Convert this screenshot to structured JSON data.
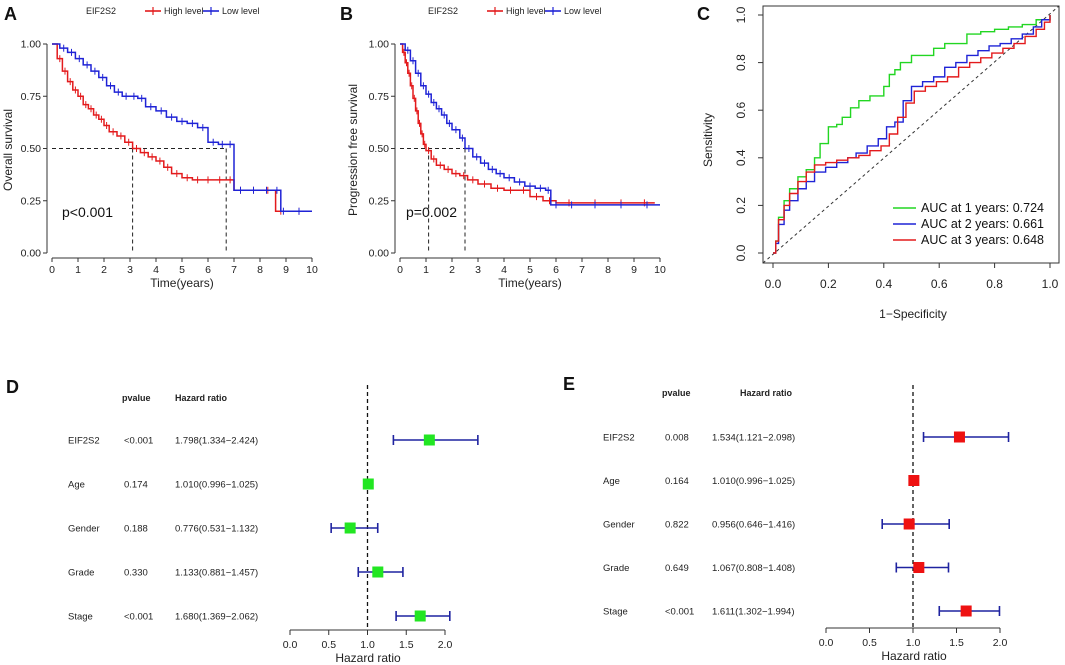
{
  "chart_data": [
    {
      "id": "A",
      "type": "line",
      "panel_label": "A",
      "legend_title": "EIF2S2",
      "xlabel": "Time(years)",
      "ylabel": "Overall survival",
      "xlim": [
        0,
        10
      ],
      "ylim": [
        0,
        1
      ],
      "xticks": [
        "0",
        "1",
        "2",
        "3",
        "4",
        "5",
        "6",
        "7",
        "8",
        "9",
        "10"
      ],
      "yticks": [
        "0.00",
        "0.25",
        "0.50",
        "0.75",
        "1.00"
      ],
      "pvalue_text": "p<0.001",
      "medians": [
        3.1,
        6.7
      ],
      "series": [
        {
          "name": "High level",
          "color": "#e31a1c",
          "x": [
            0,
            0.2,
            0.4,
            0.6,
            0.8,
            1.0,
            1.2,
            1.4,
            1.6,
            1.8,
            2.0,
            2.2,
            2.5,
            2.8,
            3.1,
            3.4,
            3.7,
            4.0,
            4.3,
            4.6,
            5.0,
            5.4,
            5.8,
            6.2,
            6.7,
            7.0,
            7.5,
            8.0,
            8.6,
            9.0,
            10.0
          ],
          "y": [
            1.0,
            0.93,
            0.87,
            0.82,
            0.78,
            0.75,
            0.71,
            0.69,
            0.66,
            0.64,
            0.61,
            0.58,
            0.56,
            0.53,
            0.5,
            0.48,
            0.46,
            0.44,
            0.41,
            0.38,
            0.36,
            0.35,
            0.35,
            0.35,
            0.35,
            0.3,
            0.3,
            0.3,
            0.2,
            0.2,
            0.2
          ]
        },
        {
          "name": "Low level",
          "color": "#1f23d6",
          "x": [
            0,
            0.3,
            0.6,
            0.9,
            1.2,
            1.5,
            1.8,
            2.1,
            2.4,
            2.7,
            3.0,
            3.3,
            3.6,
            4.0,
            4.4,
            4.8,
            5.2,
            5.6,
            6.0,
            6.4,
            6.7,
            7.0,
            7.5,
            8.0,
            8.5,
            8.8,
            9.0,
            10.0
          ],
          "y": [
            1.0,
            0.98,
            0.96,
            0.93,
            0.9,
            0.87,
            0.84,
            0.8,
            0.77,
            0.75,
            0.75,
            0.74,
            0.7,
            0.68,
            0.65,
            0.63,
            0.62,
            0.6,
            0.53,
            0.52,
            0.52,
            0.3,
            0.3,
            0.3,
            0.3,
            0.2,
            0.2,
            0.2
          ]
        }
      ]
    },
    {
      "id": "B",
      "type": "line",
      "panel_label": "B",
      "legend_title": "EIF2S2",
      "xlabel": "Time(years)",
      "ylabel": "Progression free survival",
      "xlim": [
        0,
        10
      ],
      "ylim": [
        0,
        1
      ],
      "xticks": [
        "0",
        "1",
        "2",
        "3",
        "4",
        "5",
        "6",
        "7",
        "8",
        "9",
        "10"
      ],
      "yticks": [
        "0.00",
        "0.25",
        "0.50",
        "0.75",
        "1.00"
      ],
      "pvalue_text": "p=0.002",
      "medians": [
        1.1,
        2.5
      ],
      "series": [
        {
          "name": "High level",
          "color": "#e31a1c",
          "x": [
            0,
            0.1,
            0.2,
            0.3,
            0.4,
            0.5,
            0.6,
            0.7,
            0.8,
            0.9,
            1.0,
            1.2,
            1.4,
            1.7,
            2.0,
            2.3,
            2.6,
            3.0,
            3.5,
            4.0,
            4.5,
            5.0,
            5.5,
            6.0,
            7.0,
            8.0,
            9.0,
            9.8
          ],
          "y": [
            1.0,
            0.96,
            0.91,
            0.86,
            0.8,
            0.74,
            0.68,
            0.62,
            0.57,
            0.52,
            0.49,
            0.45,
            0.42,
            0.4,
            0.38,
            0.37,
            0.35,
            0.33,
            0.31,
            0.3,
            0.3,
            0.27,
            0.25,
            0.24,
            0.24,
            0.24,
            0.24,
            0.24
          ]
        },
        {
          "name": "Low level",
          "color": "#1f23d6",
          "x": [
            0,
            0.2,
            0.4,
            0.6,
            0.8,
            1.0,
            1.2,
            1.4,
            1.6,
            1.8,
            2.0,
            2.3,
            2.5,
            2.8,
            3.1,
            3.4,
            3.7,
            4.0,
            4.4,
            4.8,
            5.2,
            5.6,
            5.8,
            6.2,
            7.0,
            8.0,
            9.0,
            10.0
          ],
          "y": [
            1.0,
            0.97,
            0.92,
            0.86,
            0.8,
            0.76,
            0.72,
            0.69,
            0.66,
            0.62,
            0.59,
            0.55,
            0.5,
            0.46,
            0.43,
            0.4,
            0.38,
            0.36,
            0.34,
            0.32,
            0.31,
            0.3,
            0.23,
            0.23,
            0.23,
            0.23,
            0.23,
            0.23
          ]
        }
      ]
    },
    {
      "id": "C",
      "type": "line",
      "panel_label": "C",
      "xlabel": "1−Specificity",
      "ylabel": "Sensitivity",
      "xlim": [
        0,
        1
      ],
      "ylim": [
        0,
        1
      ],
      "xticks": [
        "0.0",
        "0.2",
        "0.4",
        "0.6",
        "0.8",
        "1.0"
      ],
      "yticks": [
        "0.0",
        "0.2",
        "0.4",
        "0.6",
        "0.8",
        "1.0"
      ],
      "series": [
        {
          "name": "AUC at 1 years: 0.724",
          "color": "#22d622",
          "x": [
            0,
            0.01,
            0.02,
            0.04,
            0.06,
            0.09,
            0.12,
            0.15,
            0.17,
            0.2,
            0.23,
            0.25,
            0.28,
            0.31,
            0.35,
            0.38,
            0.4,
            0.42,
            0.44,
            0.46,
            0.5,
            0.55,
            0.58,
            0.62,
            0.66,
            0.7,
            0.75,
            0.8,
            0.85,
            0.9,
            0.95,
            1.0
          ],
          "y": [
            0,
            0.05,
            0.15,
            0.22,
            0.27,
            0.32,
            0.35,
            0.4,
            0.46,
            0.53,
            0.54,
            0.57,
            0.61,
            0.64,
            0.66,
            0.66,
            0.7,
            0.75,
            0.77,
            0.8,
            0.83,
            0.83,
            0.86,
            0.88,
            0.88,
            0.92,
            0.93,
            0.94,
            0.95,
            0.96,
            0.98,
            1.0
          ]
        },
        {
          "name": "AUC at 2 years: 0.661",
          "color": "#1f23d6",
          "x": [
            0,
            0.01,
            0.02,
            0.04,
            0.06,
            0.09,
            0.12,
            0.15,
            0.19,
            0.23,
            0.27,
            0.3,
            0.34,
            0.38,
            0.41,
            0.44,
            0.47,
            0.5,
            0.54,
            0.58,
            0.62,
            0.66,
            0.7,
            0.74,
            0.78,
            0.82,
            0.86,
            0.9,
            0.94,
            0.97,
            1.0
          ],
          "y": [
            0,
            0.04,
            0.12,
            0.18,
            0.22,
            0.27,
            0.3,
            0.34,
            0.36,
            0.38,
            0.4,
            0.42,
            0.45,
            0.48,
            0.53,
            0.55,
            0.64,
            0.7,
            0.72,
            0.74,
            0.78,
            0.8,
            0.83,
            0.85,
            0.87,
            0.88,
            0.9,
            0.92,
            0.95,
            0.98,
            1.0
          ]
        },
        {
          "name": "AUC at 3 years: 0.648",
          "color": "#e31a1c",
          "x": [
            0,
            0.01,
            0.02,
            0.04,
            0.06,
            0.09,
            0.12,
            0.15,
            0.19,
            0.23,
            0.27,
            0.31,
            0.35,
            0.39,
            0.42,
            0.45,
            0.48,
            0.51,
            0.55,
            0.59,
            0.63,
            0.67,
            0.71,
            0.75,
            0.79,
            0.83,
            0.87,
            0.91,
            0.95,
            0.98,
            1.0
          ],
          "y": [
            0,
            0.05,
            0.14,
            0.2,
            0.25,
            0.3,
            0.34,
            0.37,
            0.38,
            0.39,
            0.4,
            0.41,
            0.43,
            0.45,
            0.5,
            0.57,
            0.63,
            0.68,
            0.7,
            0.72,
            0.74,
            0.78,
            0.8,
            0.82,
            0.84,
            0.86,
            0.88,
            0.91,
            0.94,
            0.97,
            1.0
          ]
        }
      ]
    },
    {
      "id": "D",
      "type": "scatter",
      "panel_label": "D",
      "subtype": "forest",
      "col_pvalue": "pvalue",
      "col_hr": "Hazard ratio",
      "xlabel": "Hazard ratio",
      "xlim": [
        0,
        2
      ],
      "xticks": [
        "0.0",
        "0.5",
        "1.0",
        "1.5",
        "2.0"
      ],
      "marker_color": "#22e622",
      "rows": [
        {
          "label": "EIF2S2",
          "pvalue": "<0.001",
          "hr_text": "1.798(1.334−2.424)",
          "hr": 1.798,
          "lo": 1.334,
          "hi": 2.424
        },
        {
          "label": "Age",
          "pvalue": "0.174",
          "hr_text": "1.010(0.996−1.025)",
          "hr": 1.01,
          "lo": 0.996,
          "hi": 1.025
        },
        {
          "label": "Gender",
          "pvalue": "0.188",
          "hr_text": "0.776(0.531−1.132)",
          "hr": 0.776,
          "lo": 0.531,
          "hi": 1.132
        },
        {
          "label": "Grade",
          "pvalue": "0.330",
          "hr_text": "1.133(0.881−1.457)",
          "hr": 1.133,
          "lo": 0.881,
          "hi": 1.457
        },
        {
          "label": "Stage",
          "pvalue": "<0.001",
          "hr_text": "1.680(1.369−2.062)",
          "hr": 1.68,
          "lo": 1.369,
          "hi": 2.062
        }
      ]
    },
    {
      "id": "E",
      "type": "scatter",
      "panel_label": "E",
      "subtype": "forest",
      "col_pvalue": "pvalue",
      "col_hr": "Hazard ratio",
      "xlabel": "Hazard ratio",
      "xlim": [
        0,
        2
      ],
      "xticks": [
        "0.0",
        "0.5",
        "1.0",
        "1.5",
        "2.0"
      ],
      "marker_color": "#ee1111",
      "rows": [
        {
          "label": "EIF2S2",
          "pvalue": "0.008",
          "hr_text": "1.534(1.121−2.098)",
          "hr": 1.534,
          "lo": 1.121,
          "hi": 2.098
        },
        {
          "label": "Age",
          "pvalue": "0.164",
          "hr_text": "1.010(0.996−1.025)",
          "hr": 1.01,
          "lo": 0.996,
          "hi": 1.025
        },
        {
          "label": "Gender",
          "pvalue": "0.822",
          "hr_text": "0.956(0.646−1.416)",
          "hr": 0.956,
          "lo": 0.646,
          "hi": 1.416
        },
        {
          "label": "Grade",
          "pvalue": "0.649",
          "hr_text": "1.067(0.808−1.408)",
          "hr": 1.067,
          "lo": 0.808,
          "hi": 1.408
        },
        {
          "label": "Stage",
          "pvalue": "<0.001",
          "hr_text": "1.611(1.302−1.994)",
          "hr": 1.611,
          "lo": 1.302,
          "hi": 1.994
        }
      ]
    }
  ]
}
